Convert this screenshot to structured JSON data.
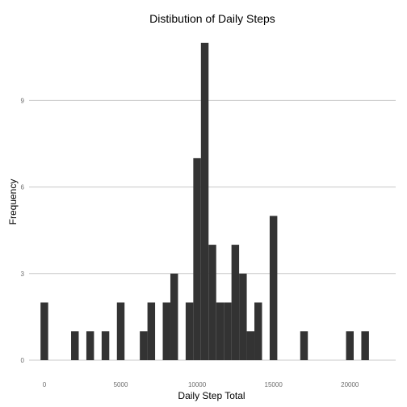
{
  "chart_data": {
    "type": "bar",
    "title": "Distibution of Daily Steps",
    "xlabel": "Daily Step Total",
    "ylabel": "Frequency",
    "bin_width": 500,
    "xlim": [
      -1000,
      23000
    ],
    "ylim": [
      0,
      11
    ],
    "x_ticks": [
      0,
      5000,
      10000,
      15000,
      20000
    ],
    "x_tick_labels": [
      "0",
      "5000",
      "10000",
      "15000",
      "20000"
    ],
    "y_ticks": [
      0,
      3,
      6,
      9
    ],
    "y_tick_labels": [
      "0",
      "3",
      "6",
      "9"
    ],
    "grid": "horizontal",
    "bar_color": "#333333",
    "grid_color": "#c8c8c8",
    "bins": [
      {
        "x": 0,
        "count": 2
      },
      {
        "x": 2000,
        "count": 1
      },
      {
        "x": 3000,
        "count": 1
      },
      {
        "x": 4000,
        "count": 1
      },
      {
        "x": 5000,
        "count": 2
      },
      {
        "x": 6500,
        "count": 1
      },
      {
        "x": 7000,
        "count": 2
      },
      {
        "x": 8000,
        "count": 2
      },
      {
        "x": 8500,
        "count": 3
      },
      {
        "x": 9500,
        "count": 2
      },
      {
        "x": 10000,
        "count": 7
      },
      {
        "x": 10500,
        "count": 11
      },
      {
        "x": 11000,
        "count": 4
      },
      {
        "x": 11500,
        "count": 2
      },
      {
        "x": 12000,
        "count": 2
      },
      {
        "x": 12500,
        "count": 4
      },
      {
        "x": 13000,
        "count": 3
      },
      {
        "x": 13500,
        "count": 1
      },
      {
        "x": 14000,
        "count": 2
      },
      {
        "x": 15000,
        "count": 5
      },
      {
        "x": 17000,
        "count": 1
      },
      {
        "x": 20000,
        "count": 1
      },
      {
        "x": 21000,
        "count": 1
      }
    ]
  }
}
